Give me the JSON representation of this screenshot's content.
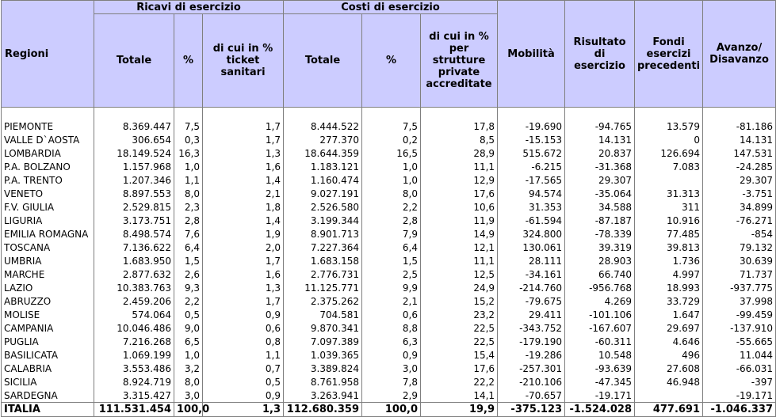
{
  "header": {
    "regioni": "Regioni",
    "ricavi_group": "Ricavi di esercizio",
    "costi_group": "Costi di esercizio",
    "ricavi_totale": "Totale",
    "ricavi_pct": "%",
    "ricavi_ticket": "di cui in % ticket sanitari",
    "costi_totale": "Totale",
    "costi_pct": "%",
    "costi_private": "di cui in % per strutture private accreditate",
    "mobilita": "Mobilità",
    "risultato": "Risultato di esercizio",
    "fondi": "Fondi esercizi precedenti",
    "avanzo": "Avanzo/ Disavanzo"
  },
  "rows": [
    [
      "PIEMONTE",
      "8.369.447",
      "7,5",
      "1,7",
      "8.444.522",
      "7,5",
      "17,8",
      "-19.690",
      "-94.765",
      "13.579",
      "-81.186"
    ],
    [
      "VALLE D`AOSTA",
      "306.654",
      "0,3",
      "1,7",
      "277.370",
      "0,2",
      "8,5",
      "-15.153",
      "14.131",
      "0",
      "14.131"
    ],
    [
      "LOMBARDIA",
      "18.149.524",
      "16,3",
      "1,3",
      "18.644.359",
      "16,5",
      "28,9",
      "515.672",
      "20.837",
      "126.694",
      "147.531"
    ],
    [
      "P.A. BOLZANO",
      "1.157.968",
      "1,0",
      "1,6",
      "1.183.121",
      "1,0",
      "11,1",
      "-6.215",
      "-31.368",
      "7.083",
      "-24.285"
    ],
    [
      "P.A. TRENTO",
      "1.207.346",
      "1,1",
      "1,4",
      "1.160.474",
      "1,0",
      "12,9",
      "-17.565",
      "29.307",
      "",
      "29.307"
    ],
    [
      "VENETO",
      "8.897.553",
      "8,0",
      "2,1",
      "9.027.191",
      "8,0",
      "17,6",
      "94.574",
      "-35.064",
      "31.313",
      "-3.751"
    ],
    [
      "F.V. GIULIA",
      "2.529.815",
      "2,3",
      "1,8",
      "2.526.580",
      "2,2",
      "10,6",
      "31.353",
      "34.588",
      "311",
      "34.899"
    ],
    [
      "LIGURIA",
      "3.173.751",
      "2,8",
      "1,4",
      "3.199.344",
      "2,8",
      "11,9",
      "-61.594",
      "-87.187",
      "10.916",
      "-76.271"
    ],
    [
      "EMILIA ROMAGNA",
      "8.498.574",
      "7,6",
      "1,9",
      "8.901.713",
      "7,9",
      "14,9",
      "324.800",
      "-78.339",
      "77.485",
      "-854"
    ],
    [
      "TOSCANA",
      "7.136.622",
      "6,4",
      "2,0",
      "7.227.364",
      "6,4",
      "12,1",
      "130.061",
      "39.319",
      "39.813",
      "79.132"
    ],
    [
      "UMBRIA",
      "1.683.950",
      "1,5",
      "1,7",
      "1.683.158",
      "1,5",
      "11,1",
      "28.111",
      "28.903",
      "1.736",
      "30.639"
    ],
    [
      "MARCHE",
      "2.877.632",
      "2,6",
      "1,6",
      "2.776.731",
      "2,5",
      "12,5",
      "-34.161",
      "66.740",
      "4.997",
      "71.737"
    ],
    [
      "LAZIO",
      "10.383.763",
      "9,3",
      "1,3",
      "11.125.771",
      "9,9",
      "24,9",
      "-214.760",
      "-956.768",
      "18.993",
      "-937.775"
    ],
    [
      "ABRUZZO",
      "2.459.206",
      "2,2",
      "1,7",
      "2.375.262",
      "2,1",
      "15,2",
      "-79.675",
      "4.269",
      "33.729",
      "37.998"
    ],
    [
      "MOLISE",
      "574.064",
      "0,5",
      "0,9",
      "704.581",
      "0,6",
      "23,2",
      "29.411",
      "-101.106",
      "1.647",
      "-99.459"
    ],
    [
      "CAMPANIA",
      "10.046.486",
      "9,0",
      "0,6",
      "9.870.341",
      "8,8",
      "22,5",
      "-343.752",
      "-167.607",
      "29.697",
      "-137.910"
    ],
    [
      "PUGLIA",
      "7.216.268",
      "6,5",
      "0,8",
      "7.097.389",
      "6,3",
      "22,5",
      "-179.190",
      "-60.311",
      "4.646",
      "-55.665"
    ],
    [
      "BASILICATA",
      "1.069.199",
      "1,0",
      "1,1",
      "1.039.365",
      "0,9",
      "15,4",
      "-19.286",
      "10.548",
      "496",
      "11.044"
    ],
    [
      "CALABRIA",
      "3.553.486",
      "3,2",
      "0,7",
      "3.389.824",
      "3,0",
      "17,6",
      "-257.301",
      "-93.639",
      "27.608",
      "-66.031"
    ],
    [
      "SICILIA",
      "8.924.719",
      "8,0",
      "0,5",
      "8.761.958",
      "7,8",
      "22,2",
      "-210.106",
      "-47.345",
      "46.948",
      "-397"
    ],
    [
      "SARDEGNA",
      "3.315.427",
      "3,0",
      "0,9",
      "3.263.941",
      "2,9",
      "14,1",
      "-70.657",
      "-19.171",
      "",
      "-19.171"
    ]
  ],
  "total": [
    "ITALIA",
    "111.531.454",
    "100,0",
    "1,3",
    "112.680.359",
    "100,0",
    "19,9",
    "-375.123",
    "-1.524.028",
    "477.691",
    "-1.046.337"
  ]
}
